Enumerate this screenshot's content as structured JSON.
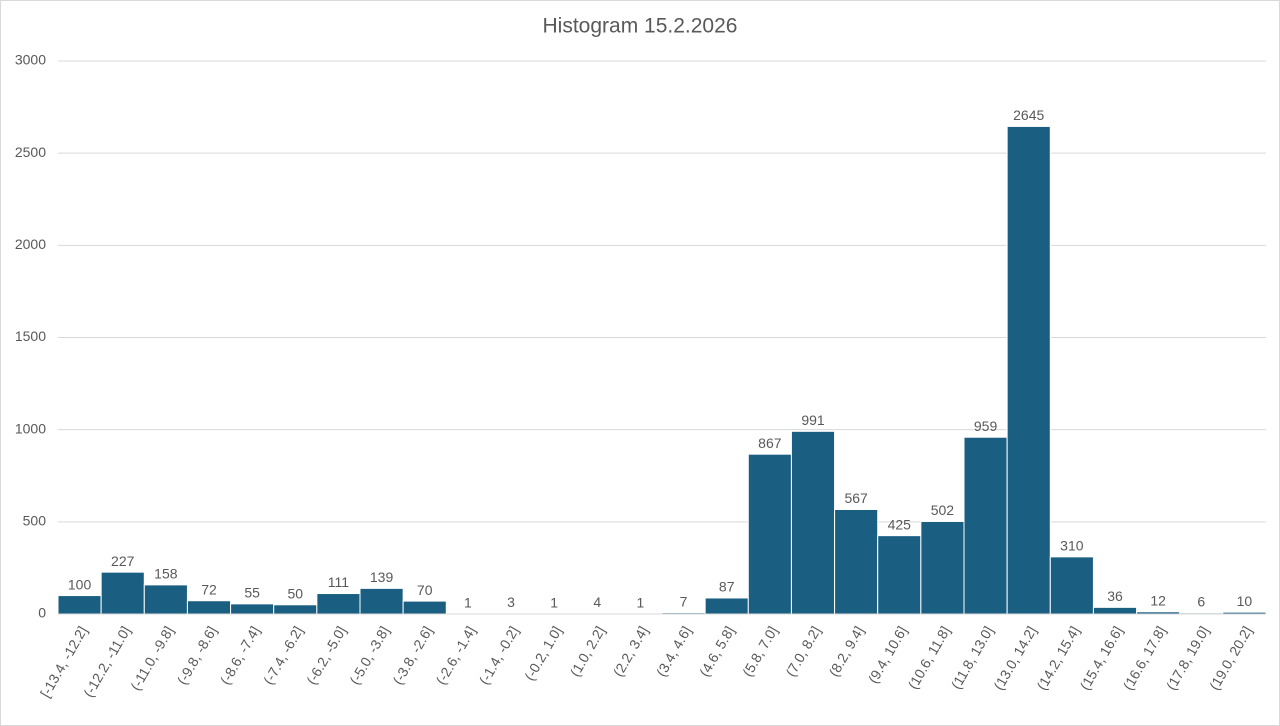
{
  "chart_data": {
    "type": "bar",
    "title": "Histogram 15.2.2026",
    "categories": [
      "[-13.4, -12.2]",
      "(-12.2, -11.0]",
      "(-11.0, -9.8]",
      "(-9.8, -8.6]",
      "(-8.6, -7.4]",
      "(-7.4, -6.2]",
      "(-6.2, -5.0]",
      "(-5.0, -3.8]",
      "(-3.8, -2.6]",
      "(-2.6, -1.4]",
      "(-1.4, -0.2]",
      "(-0.2, 1.0]",
      "(1.0, 2.2]",
      "(2.2, 3.4]",
      "(3.4, 4.6]",
      "(4.6, 5.8]",
      "(5.8, 7.0]",
      "(7.0, 8.2]",
      "(8.2, 9.4]",
      "(9.4, 10.6]",
      "(10.6, 11.8]",
      "(11.8, 13.0]",
      "(13.0, 14.2]",
      "(14.2, 15.4]",
      "(15.4, 16.6]",
      "(16.6, 17.8]",
      "(17.8, 19.0]",
      "(19.0, 20.2]"
    ],
    "values": [
      100,
      227,
      158,
      72,
      55,
      50,
      111,
      139,
      70,
      1,
      3,
      1,
      4,
      1,
      7,
      87,
      867,
      991,
      567,
      425,
      502,
      959,
      2645,
      310,
      36,
      12,
      6,
      10
    ],
    "color": "#1a5f82",
    "ylim": [
      0,
      3000
    ],
    "yticks": [
      0,
      500,
      1000,
      1500,
      2000,
      2500,
      3000
    ],
    "grid": true
  }
}
